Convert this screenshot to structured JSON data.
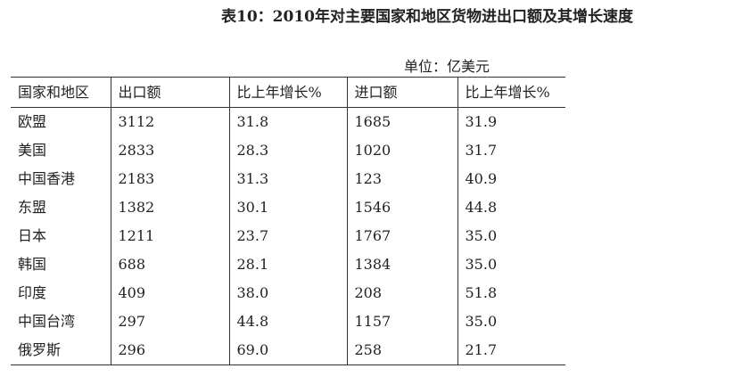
{
  "title": "表10：2010年对主要国家和地区货物进出口额及其增长速度",
  "unit": "单位：亿美元",
  "chart_data": {
    "type": "table",
    "columns": [
      "国家和地区",
      "出口额",
      "比上年增长%",
      "进口额",
      "比上年增长%"
    ],
    "rows": [
      [
        "欧盟",
        "3112",
        "31.8",
        "1685",
        "31.9"
      ],
      [
        "美国",
        "2833",
        "28.3",
        "1020",
        "31.7"
      ],
      [
        "中国香港",
        "2183",
        "31.3",
        "123",
        "40.9"
      ],
      [
        "东盟",
        "1382",
        "30.1",
        "1546",
        "44.8"
      ],
      [
        "日本",
        "1211",
        "23.7",
        "1767",
        "35.0"
      ],
      [
        "韩国",
        "688",
        "28.1",
        "1384",
        "35.0"
      ],
      [
        "印度",
        "409",
        "38.0",
        "208",
        "51.8"
      ],
      [
        "中国台湾",
        "297",
        "44.8",
        "1157",
        "35.0"
      ],
      [
        "俄罗斯",
        "296",
        "69.0",
        "258",
        "21.7"
      ]
    ]
  }
}
